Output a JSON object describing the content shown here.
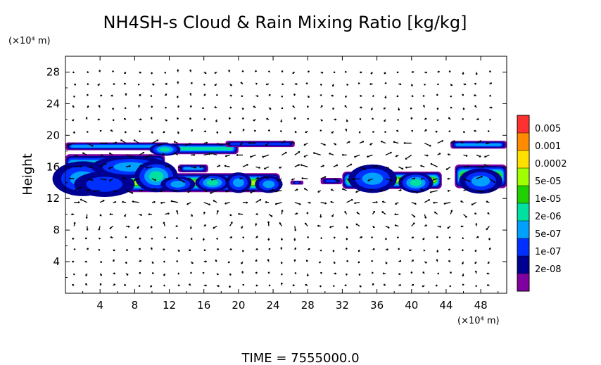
{
  "chart_data": {
    "type": "heatmap",
    "title": "NH4SH-s Cloud & Rain Mixing Ratio [kg/kg]",
    "ylabel": "Height",
    "y_unit": "(×10⁴ m)",
    "x_unit": "(×10⁴ m)",
    "footer": "TIME  =  7555000.0",
    "xlim": [
      0,
      51
    ],
    "ylim": [
      0,
      30
    ],
    "x_ticks": [
      4,
      8,
      12,
      16,
      20,
      24,
      28,
      32,
      36,
      40,
      44,
      48
    ],
    "y_ticks": [
      4,
      8,
      12,
      16,
      20,
      24,
      28
    ],
    "colorbar": {
      "labels": [
        "0.005",
        "0.001",
        "0.0002",
        "5e-05",
        "1e-05",
        "2e-06",
        "5e-07",
        "1e-07",
        "2e-08"
      ],
      "colors": [
        "#ff3030",
        "#ff8c00",
        "#ffe000",
        "#a0ff00",
        "#20d000",
        "#00e0a0",
        "#00a0ff",
        "#0030ff",
        "#000090",
        "#8000a0"
      ]
    },
    "cloud_patches": [
      {
        "x": 2.0,
        "y": 14.5,
        "rx": 3.5,
        "ry": 2.2,
        "level": 3
      },
      {
        "x": 4.5,
        "y": 13.8,
        "rx": 3.5,
        "ry": 1.6,
        "level": 2
      },
      {
        "x": 7.5,
        "y": 16.0,
        "rx": 4.5,
        "ry": 1.4,
        "level": 3
      },
      {
        "x": 10.5,
        "y": 14.8,
        "rx": 2.5,
        "ry": 2.0,
        "level": 4
      },
      {
        "x": 11.5,
        "y": 18.2,
        "rx": 1.8,
        "ry": 0.8,
        "level": 4
      },
      {
        "x": 13.0,
        "y": 13.8,
        "rx": 2.0,
        "ry": 1.0,
        "level": 3
      },
      {
        "x": 17.0,
        "y": 14.0,
        "rx": 2.0,
        "ry": 1.1,
        "level": 4
      },
      {
        "x": 20.0,
        "y": 14.0,
        "rx": 1.5,
        "ry": 1.3,
        "level": 3
      },
      {
        "x": 23.5,
        "y": 13.8,
        "rx": 1.6,
        "ry": 1.1,
        "level": 3
      },
      {
        "x": 35.5,
        "y": 14.5,
        "rx": 2.8,
        "ry": 1.8,
        "level": 3
      },
      {
        "x": 40.5,
        "y": 14.0,
        "rx": 2.0,
        "ry": 1.3,
        "level": 4
      },
      {
        "x": 48.0,
        "y": 14.2,
        "rx": 2.5,
        "ry": 1.6,
        "level": 3
      }
    ],
    "cloud_bands": [
      {
        "x0": 0.0,
        "x1": 12.0,
        "y": 18.6,
        "h": 1.0
      },
      {
        "x0": 0.0,
        "x1": 11.5,
        "y": 15.8,
        "h": 3.6
      },
      {
        "x0": 0.3,
        "x1": 24.8,
        "y": 14.0,
        "h": 2.4
      },
      {
        "x0": 12.0,
        "x1": 20.0,
        "y": 18.3,
        "h": 1.4
      },
      {
        "x0": 18.5,
        "x1": 26.5,
        "y": 18.9,
        "h": 0.8
      },
      {
        "x0": 13.0,
        "x1": 16.5,
        "y": 15.8,
        "h": 1.0
      },
      {
        "x0": 26.0,
        "x1": 27.5,
        "y": 14.0,
        "h": 0.5
      },
      {
        "x0": 29.5,
        "x1": 32.0,
        "y": 14.2,
        "h": 0.8
      },
      {
        "x0": 32.0,
        "x1": 43.5,
        "y": 14.3,
        "h": 2.2
      },
      {
        "x0": 45.0,
        "x1": 51.0,
        "y": 14.8,
        "h": 3.0
      },
      {
        "x0": 44.5,
        "x1": 51.0,
        "y": 18.8,
        "h": 1.0
      }
    ]
  }
}
